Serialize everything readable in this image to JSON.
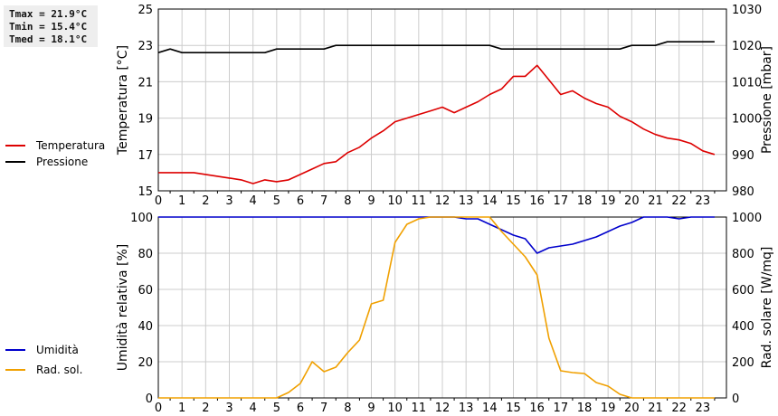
{
  "stats": {
    "tmax": "Tmax = 21.9°C",
    "tmin": "Tmin = 15.4°C",
    "tmed": "Tmed = 18.1°C"
  },
  "legend_top": [
    {
      "label": "Temperatura",
      "color": "#dd0000"
    },
    {
      "label": "Pressione",
      "color": "#000000"
    }
  ],
  "legend_bottom": [
    {
      "label": "Umidità",
      "color": "#0000cc"
    },
    {
      "label": "Rad. sol.",
      "color": "#f0a000"
    }
  ],
  "chart_data": [
    {
      "type": "line",
      "x": [
        0,
        0.5,
        1,
        1.5,
        2,
        2.5,
        3,
        3.5,
        4,
        4.5,
        5,
        5.5,
        6,
        6.5,
        7,
        7.5,
        8,
        8.5,
        9,
        9.5,
        10,
        10.5,
        11,
        11.5,
        12,
        12.5,
        13,
        13.5,
        14,
        14.5,
        15,
        15.5,
        16,
        16.5,
        17,
        17.5,
        18,
        18.5,
        19,
        19.5,
        20,
        20.5,
        21,
        21.5,
        22,
        22.5,
        23,
        23.5
      ],
      "xlim": [
        0,
        24
      ],
      "xticks": [
        "0",
        "1",
        "2",
        "3",
        "4",
        "5",
        "6",
        "7",
        "8",
        "9",
        "10",
        "11",
        "12",
        "13",
        "14",
        "15",
        "16",
        "17",
        "18",
        "19",
        "20",
        "21",
        "22",
        "23"
      ],
      "ylabel": "Temperatura [°C]",
      "ylim": [
        15,
        25
      ],
      "yticks": [
        "15",
        "17",
        "19",
        "21",
        "23",
        "25"
      ],
      "y2label": "Pressione [mbar]",
      "y2lim": [
        980,
        1030
      ],
      "y2ticks": [
        "980",
        "990",
        "1000",
        "1010",
        "1020",
        "1030"
      ],
      "grid": true,
      "series": [
        {
          "name": "Temperatura",
          "axis": "left",
          "color": "#dd0000",
          "values": [
            16.0,
            16.0,
            16.0,
            16.0,
            15.9,
            15.8,
            15.7,
            15.6,
            15.4,
            15.6,
            15.5,
            15.6,
            15.9,
            16.2,
            16.5,
            16.6,
            17.1,
            17.4,
            17.9,
            18.3,
            18.8,
            19.0,
            19.2,
            19.4,
            19.6,
            19.3,
            19.6,
            19.9,
            20.3,
            20.6,
            21.3,
            21.3,
            21.9,
            21.1,
            20.3,
            20.5,
            20.1,
            19.8,
            19.6,
            19.1,
            18.8,
            18.4,
            18.1,
            17.9,
            17.8,
            17.6,
            17.2,
            17.0
          ]
        },
        {
          "name": "Pressione",
          "axis": "right",
          "color": "#000000",
          "values": [
            1018,
            1019,
            1018,
            1018,
            1018,
            1018,
            1018,
            1018,
            1018,
            1018,
            1019,
            1019,
            1019,
            1019,
            1019,
            1020,
            1020,
            1020,
            1020,
            1020,
            1020,
            1020,
            1020,
            1020,
            1020,
            1020,
            1020,
            1020,
            1020,
            1019,
            1019,
            1019,
            1019,
            1019,
            1019,
            1019,
            1019,
            1019,
            1019,
            1019,
            1020,
            1020,
            1020,
            1021,
            1021,
            1021,
            1021,
            1021
          ]
        }
      ]
    },
    {
      "type": "line",
      "x": [
        0,
        0.5,
        1,
        1.5,
        2,
        2.5,
        3,
        3.5,
        4,
        4.5,
        5,
        5.5,
        6,
        6.5,
        7,
        7.5,
        8,
        8.5,
        9,
        9.5,
        10,
        10.5,
        11,
        11.5,
        12,
        12.5,
        13,
        13.5,
        14,
        14.5,
        15,
        15.5,
        16,
        16.5,
        17,
        17.5,
        18,
        18.5,
        19,
        19.5,
        20,
        20.5,
        21,
        21.5,
        22,
        22.5,
        23,
        23.5
      ],
      "xlim": [
        0,
        24
      ],
      "xticks": [
        "0",
        "1",
        "2",
        "3",
        "4",
        "5",
        "6",
        "7",
        "8",
        "9",
        "10",
        "11",
        "12",
        "13",
        "14",
        "15",
        "16",
        "17",
        "18",
        "19",
        "20",
        "21",
        "22",
        "23"
      ],
      "ylabel": "Umidità relativa [%]",
      "ylim": [
        0,
        100
      ],
      "yticks": [
        "0",
        "20",
        "40",
        "60",
        "80",
        "100"
      ],
      "y2label": "Rad. solare [W/mq]",
      "y2lim": [
        0,
        1000
      ],
      "y2ticks": [
        "0",
        "200",
        "400",
        "600",
        "800",
        "1000"
      ],
      "grid": true,
      "series": [
        {
          "name": "Umidità",
          "axis": "left",
          "color": "#0000cc",
          "values": [
            100,
            100,
            100,
            100,
            100,
            100,
            100,
            100,
            100,
            100,
            100,
            100,
            100,
            100,
            100,
            100,
            100,
            100,
            100,
            100,
            100,
            100,
            100,
            100,
            100,
            100,
            99,
            99,
            96,
            93,
            90,
            88,
            80,
            83,
            84,
            85,
            87,
            89,
            92,
            95,
            97,
            100,
            100,
            100,
            99,
            100,
            100,
            100
          ]
        },
        {
          "name": "Rad. sol.",
          "axis": "right",
          "color": "#f0a000",
          "values": [
            0,
            0,
            0,
            0,
            0,
            0,
            0,
            0,
            0,
            0,
            0,
            30,
            80,
            200,
            145,
            170,
            250,
            320,
            520,
            540,
            860,
            960,
            990,
            1000,
            1000,
            1000,
            1000,
            1000,
            1000,
            920,
            850,
            780,
            680,
            330,
            150,
            140,
            135,
            85,
            65,
            20,
            0,
            0,
            0,
            0,
            0,
            0,
            0,
            0
          ]
        }
      ]
    }
  ]
}
